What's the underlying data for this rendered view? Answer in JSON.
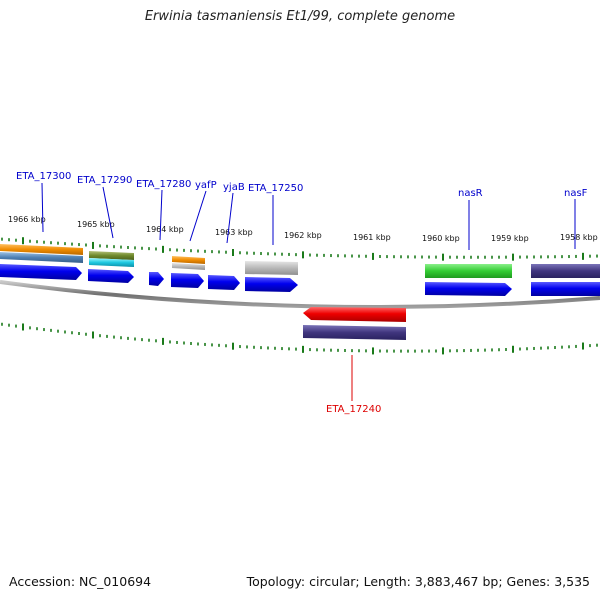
{
  "title": "Erwinia tasmaniensis Et1/99, complete genome",
  "footer": {
    "accession": "Accession: NC_010694",
    "topology": "Topology: circular; Length: 3,883,467 bp; Genes: 3,535"
  },
  "kbp_labels": [
    "1966 kbp",
    "1965 kbp",
    "1964 kbp",
    "1963 kbp",
    "1962 kbp",
    "1961 kbp",
    "1960 kbp",
    "1959 kbp",
    "1958 kbp"
  ],
  "gene_labels": [
    {
      "name": "ETA_17300",
      "color": "#0000cc"
    },
    {
      "name": "ETA_17290",
      "color": "#0000cc"
    },
    {
      "name": "ETA_17280",
      "color": "#0000cc"
    },
    {
      "name": "yafP",
      "color": "#0000cc"
    },
    {
      "name": "yjaB",
      "color": "#0000cc"
    },
    {
      "name": "ETA_17250",
      "color": "#0000cc"
    },
    {
      "name": "nasR",
      "color": "#0000cc"
    },
    {
      "name": "nasF",
      "color": "#0000cc"
    },
    {
      "name": "ETA_17240",
      "color": "#dd0000"
    }
  ],
  "colors": {
    "forward_gene": "#0000ee",
    "reverse_gene": "#ee0000",
    "backbone": "#808080",
    "tick": "#1a7a1a"
  }
}
